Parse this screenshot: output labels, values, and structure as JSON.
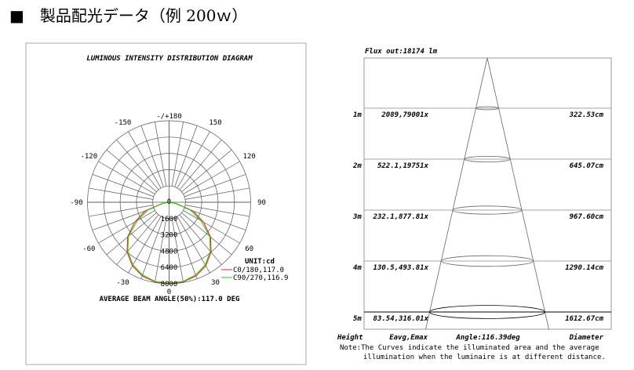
{
  "page_title": "■　製品配光データ（例 200ｗ）",
  "polar": {
    "title": "LUMINOUS INTENSITY DISTRIBUTION DIAGRAM",
    "angle_labels": [
      {
        "text": "-/+180",
        "deg": 180
      },
      {
        "text": "150",
        "deg": 150
      },
      {
        "text": "-150",
        "deg": -150
      },
      {
        "text": "120",
        "deg": 120
      },
      {
        "text": "-120",
        "deg": -120
      },
      {
        "text": "90",
        "deg": 90
      },
      {
        "text": "-90",
        "deg": -90
      },
      {
        "text": "60",
        "deg": 60
      },
      {
        "text": "-60",
        "deg": -60
      },
      {
        "text": "30",
        "deg": 30
      },
      {
        "text": "-30",
        "deg": -30
      },
      {
        "text": "0",
        "deg": 0
      }
    ],
    "ring_labels": [
      "0",
      "1600",
      "3200",
      "4800",
      "6400",
      "8000"
    ],
    "unit": "UNIT:cd",
    "legend": [
      {
        "label": "C0/180,117.0",
        "color": "#ff2020"
      },
      {
        "label": "C90/270,116.9",
        "color": "#20d020"
      }
    ],
    "beam_angle_text": "AVERAGE BEAM ANGLE(50%):117.0 DEG"
  },
  "chart_data": {
    "type": "polar",
    "unit": "cd",
    "rmax": 8000,
    "ring_step": 1600,
    "spoke_step_deg": 10,
    "angles_deg": [
      0,
      10,
      20,
      30,
      40,
      50,
      60,
      70,
      80,
      90
    ],
    "series": [
      {
        "name": "C0/180,117.0",
        "color": "#ff2020",
        "values": [
          8000,
          7950,
          7700,
          7200,
          6400,
          5300,
          3900,
          2500,
          700,
          0
        ]
      },
      {
        "name": "C90/270,116.9",
        "color": "#20d020",
        "values": [
          7950,
          7900,
          7600,
          7100,
          6300,
          5200,
          3600,
          2200,
          600,
          0
        ]
      }
    ]
  },
  "cone": {
    "flux": "Flux out:18174 lm",
    "rows": [
      {
        "height": "1m",
        "eavg_emax": "2089,79001x",
        "diameter": "322.53cm"
      },
      {
        "height": "2m",
        "eavg_emax": "522.1,19751x",
        "diameter": "645.07cm"
      },
      {
        "height": "3m",
        "eavg_emax": "232.1,877.81x",
        "diameter": "967.60cm"
      },
      {
        "height": "4m",
        "eavg_emax": "130.5,493.81x",
        "diameter": "1290.14cm"
      },
      {
        "height": "5m",
        "eavg_emax": "83.54,316.01x",
        "diameter": "1612.67cm"
      }
    ],
    "footer": {
      "height": "Height",
      "eavg": "Eavg,Emax",
      "angle": "Angle:116.39deg",
      "diameter": "Diameter"
    },
    "note_line1": "Note:The Curves indicate the illuminated area and the average",
    "note_line2": "illumination when the luminaire is at different distance."
  }
}
